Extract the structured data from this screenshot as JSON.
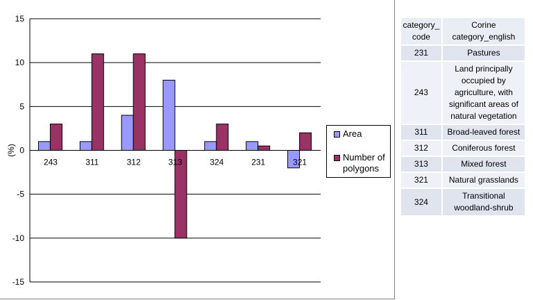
{
  "chart_data": {
    "type": "bar",
    "categories": [
      "243",
      "311",
      "312",
      "313",
      "324",
      "231",
      "321"
    ],
    "series": [
      {
        "name": "Area",
        "values": [
          1,
          1,
          4,
          8,
          1,
          1,
          -2
        ],
        "color": "#9999ff"
      },
      {
        "name": "Number of polygons",
        "values": [
          3,
          11,
          11,
          -10,
          3,
          0.5,
          2
        ],
        "color": "#993366"
      }
    ],
    "ylabel": "(%)",
    "ylim": [
      -15,
      15
    ],
    "yticks": [
      15,
      10,
      5,
      0,
      -5,
      -10,
      -15
    ],
    "grid": true,
    "legend_position": "right"
  },
  "legend": {
    "items": [
      {
        "label": "Area",
        "color": "#9999ff"
      },
      {
        "label": "Number of polygons",
        "color": "#993366"
      }
    ]
  },
  "table": {
    "headers": [
      "category_ code",
      "Corine category_english"
    ],
    "rows": [
      [
        "231",
        "Pastures"
      ],
      [
        "243",
        "Land principally occupied by agriculture, with significant areas of natural vegetation"
      ],
      [
        "311",
        "Broad-leaved forest"
      ],
      [
        "312",
        "Coniferous forest"
      ],
      [
        "313",
        "Mixed forest"
      ],
      [
        "321",
        "Natural grasslands"
      ],
      [
        "324",
        "Transitional woodland-shrub"
      ]
    ]
  }
}
